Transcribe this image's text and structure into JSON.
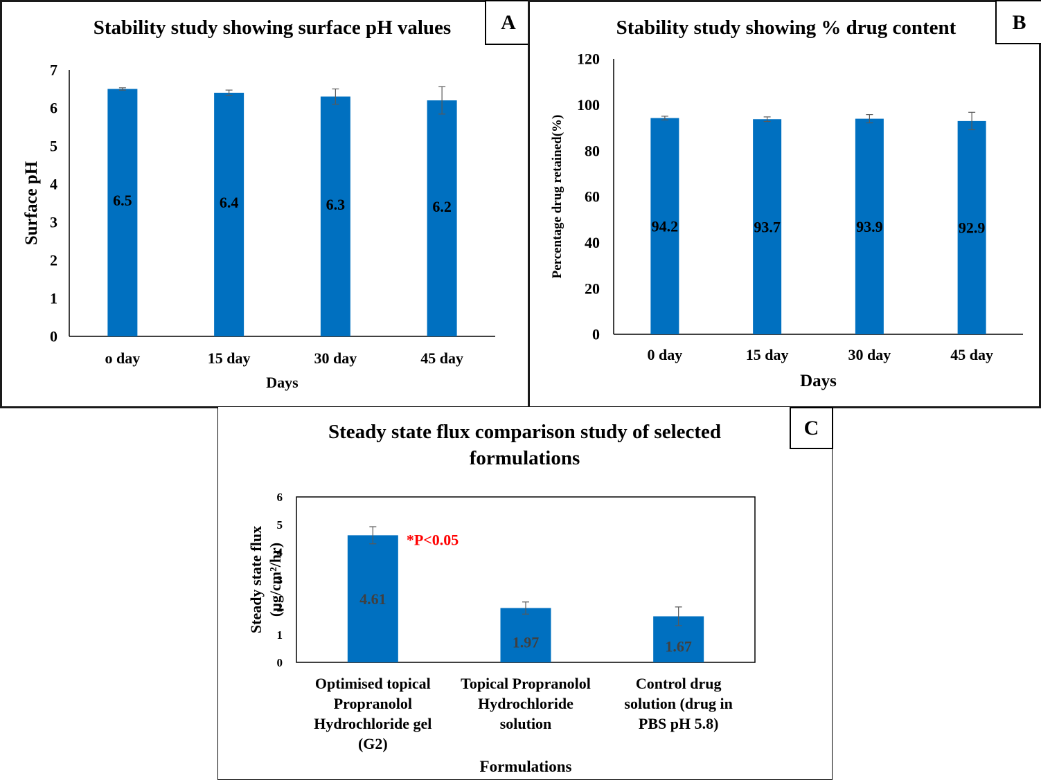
{
  "panels": {
    "a": {
      "letter": "A"
    },
    "b": {
      "letter": "B"
    },
    "c": {
      "letter": "C"
    }
  },
  "colors": {
    "bar": "#0070C0",
    "error_bar": "#595959",
    "annotation": "#FF0000",
    "axis": "#000000"
  },
  "chart_data": [
    {
      "id": "a",
      "type": "bar",
      "title": "Stability study showing surface pH values",
      "xlabel": "Days",
      "ylabel": "Surface pH",
      "categories": [
        "o day",
        "15 day",
        "30 day",
        "45 day"
      ],
      "values": [
        6.5,
        6.4,
        6.3,
        6.2
      ],
      "error": [
        0.03,
        0.07,
        0.2,
        0.36
      ],
      "data_labels": [
        "6.5",
        "6.4",
        "6.3",
        "6.2"
      ],
      "ylim": [
        0,
        7
      ],
      "yticks": [
        0,
        1,
        2,
        3,
        4,
        5,
        6,
        7
      ],
      "grid": false,
      "legend": "none"
    },
    {
      "id": "b",
      "type": "bar",
      "title": "Stability study showing % drug content",
      "xlabel": "Days",
      "ylabel": "Percentage drug retained(%)",
      "categories": [
        "0 day",
        "15 day",
        "30 day",
        "45 day"
      ],
      "values": [
        94.2,
        93.7,
        93.9,
        92.9
      ],
      "error": [
        0.8,
        1.0,
        1.8,
        3.8
      ],
      "data_labels": [
        "94.2",
        "93.7",
        "93.9",
        "92.9"
      ],
      "ylim": [
        0,
        120
      ],
      "yticks": [
        0,
        20,
        40,
        60,
        80,
        100,
        120
      ],
      "grid": false,
      "legend": "none"
    },
    {
      "id": "c",
      "type": "bar",
      "title": "Steady state flux comparison study of selected formulations",
      "title_lines": [
        "Steady state flux comparison study of selected",
        "formulations"
      ],
      "xlabel": "Formulations",
      "ylabel": "Steady state flux (µg/cm²/hr)",
      "ylabel_lines": [
        "Steady state flux",
        "(µg/cm²/hr)"
      ],
      "categories": [
        "Optimised topical Propranolol Hydrochloride gel (G2)",
        "Topical Propranolol Hydrochloride solution",
        "Control drug solution (drug in PBS pH 5.8)"
      ],
      "category_lines": [
        [
          "Optimised topical",
          "Propranolol",
          "Hydrochloride gel",
          "(G2)"
        ],
        [
          "Topical Propranolol",
          "Hydrochloride",
          "solution"
        ],
        [
          "Control drug",
          "solution  (drug in",
          "PBS pH 5.8)"
        ]
      ],
      "values": [
        4.61,
        1.97,
        1.67
      ],
      "error": [
        0.31,
        0.22,
        0.34
      ],
      "data_labels": [
        "4.61",
        "1.97",
        "1.67"
      ],
      "annotations": [
        {
          "text": "*P<0.05",
          "category_index": 0
        }
      ],
      "ylim": [
        0,
        6
      ],
      "yticks": [
        0,
        1,
        2,
        3,
        4,
        5,
        6
      ],
      "grid": false,
      "legend": "none"
    }
  ]
}
